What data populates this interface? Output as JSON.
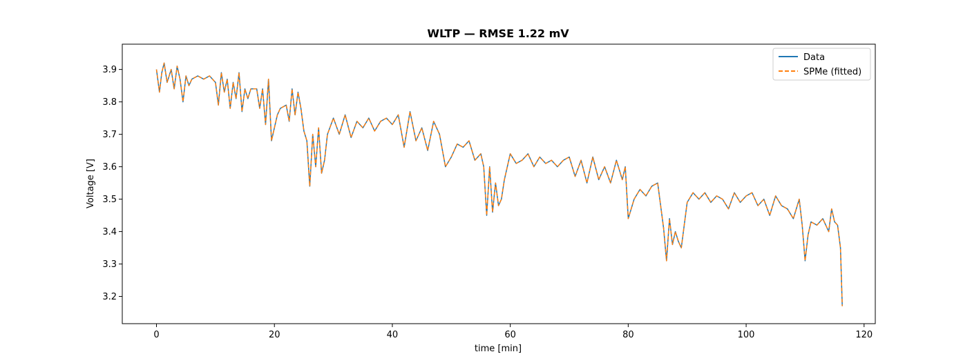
{
  "chart_data": {
    "type": "line",
    "title": "WLTP — RMSE 1.22 mV",
    "xlabel": "time [min]",
    "ylabel": "Voltage [V]",
    "xlim": [
      -5.8,
      121.9
    ],
    "ylim": [
      3.116,
      3.978
    ],
    "xticks": [
      0,
      20,
      40,
      60,
      80,
      100,
      120
    ],
    "xtick_labels": [
      "0",
      "20",
      "40",
      "60",
      "80",
      "100",
      "120"
    ],
    "yticks": [
      3.2,
      3.3,
      3.4,
      3.5,
      3.6,
      3.7,
      3.8,
      3.9
    ],
    "ytick_labels": [
      "3.2",
      "3.3",
      "3.4",
      "3.5",
      "3.6",
      "3.7",
      "3.8",
      "3.9"
    ],
    "grid": false,
    "legend_position": "top-right",
    "series": [
      {
        "name": "Data",
        "color": "#1f77b4",
        "style": "solid",
        "x": [
          0,
          0.5,
          0.9,
          1.3,
          1.8,
          2.5,
          3.0,
          3.5,
          4.0,
          4.5,
          5.0,
          5.5,
          6.0,
          7.0,
          8.0,
          9.0,
          10.0,
          10.5,
          11.0,
          11.5,
          12.0,
          12.5,
          13.0,
          13.5,
          14.0,
          14.5,
          15.0,
          15.5,
          16.0,
          17.0,
          17.5,
          18.0,
          18.5,
          19.0,
          19.5,
          20.0,
          20.5,
          21.0,
          22.0,
          22.5,
          23.0,
          23.5,
          24.0,
          24.5,
          25.0,
          25.5,
          26.0,
          26.5,
          27.0,
          27.5,
          28.0,
          28.5,
          29.0,
          30.0,
          31.0,
          32.0,
          33.0,
          34.0,
          35.0,
          36.0,
          37.0,
          38.0,
          39.0,
          40.0,
          41.0,
          42.0,
          43.0,
          44.0,
          45.0,
          46.0,
          47.0,
          48.0,
          49.0,
          50.0,
          51.0,
          52.0,
          53.0,
          54.0,
          55.0,
          55.5,
          56.0,
          56.5,
          57.0,
          57.5,
          58.0,
          58.5,
          59.0,
          60.0,
          61.0,
          62.0,
          63.0,
          64.0,
          65.0,
          66.0,
          67.0,
          68.0,
          69.0,
          70.0,
          71.0,
          72.0,
          73.0,
          74.0,
          75.0,
          76.0,
          77.0,
          78.0,
          79.0,
          79.5,
          80.0,
          81.0,
          82.0,
          83.0,
          84.0,
          85.0,
          85.5,
          86.0,
          86.5,
          87.0,
          87.5,
          88.0,
          88.5,
          89.0,
          90.0,
          91.0,
          92.0,
          93.0,
          94.0,
          95.0,
          96.0,
          97.0,
          98.0,
          99.0,
          100.0,
          101.0,
          102.0,
          103.0,
          104.0,
          105.0,
          106.0,
          107.0,
          108.0,
          109.0,
          109.5,
          110.0,
          110.5,
          111.0,
          112.0,
          113.0,
          114.0,
          114.5,
          115.0,
          115.5,
          116.0,
          116.3
        ],
        "y": [
          3.9,
          3.83,
          3.89,
          3.92,
          3.86,
          3.9,
          3.84,
          3.91,
          3.87,
          3.8,
          3.88,
          3.85,
          3.87,
          3.88,
          3.87,
          3.88,
          3.86,
          3.79,
          3.89,
          3.83,
          3.87,
          3.78,
          3.86,
          3.81,
          3.89,
          3.77,
          3.84,
          3.81,
          3.84,
          3.84,
          3.78,
          3.84,
          3.73,
          3.87,
          3.68,
          3.72,
          3.76,
          3.78,
          3.79,
          3.74,
          3.84,
          3.76,
          3.83,
          3.78,
          3.71,
          3.68,
          3.54,
          3.7,
          3.6,
          3.72,
          3.58,
          3.62,
          3.7,
          3.75,
          3.7,
          3.76,
          3.69,
          3.74,
          3.72,
          3.75,
          3.71,
          3.74,
          3.75,
          3.73,
          3.76,
          3.66,
          3.77,
          3.68,
          3.72,
          3.65,
          3.74,
          3.7,
          3.6,
          3.63,
          3.67,
          3.66,
          3.68,
          3.62,
          3.64,
          3.6,
          3.45,
          3.6,
          3.46,
          3.55,
          3.48,
          3.5,
          3.56,
          3.64,
          3.61,
          3.62,
          3.64,
          3.6,
          3.63,
          3.61,
          3.62,
          3.6,
          3.62,
          3.63,
          3.57,
          3.62,
          3.55,
          3.63,
          3.56,
          3.6,
          3.55,
          3.62,
          3.56,
          3.6,
          3.44,
          3.5,
          3.53,
          3.51,
          3.54,
          3.55,
          3.48,
          3.41,
          3.31,
          3.44,
          3.36,
          3.4,
          3.37,
          3.35,
          3.49,
          3.52,
          3.5,
          3.52,
          3.49,
          3.51,
          3.5,
          3.47,
          3.52,
          3.49,
          3.51,
          3.52,
          3.48,
          3.5,
          3.45,
          3.51,
          3.48,
          3.47,
          3.44,
          3.5,
          3.42,
          3.31,
          3.39,
          3.43,
          3.42,
          3.44,
          3.4,
          3.47,
          3.43,
          3.42,
          3.35,
          3.17
        ]
      },
      {
        "name": "SPMe (fitted)",
        "color": "#ff7f0e",
        "style": "dashed",
        "x": [
          0,
          0.5,
          0.9,
          1.3,
          1.8,
          2.5,
          3.0,
          3.5,
          4.0,
          4.5,
          5.0,
          5.5,
          6.0,
          7.0,
          8.0,
          9.0,
          10.0,
          10.5,
          11.0,
          11.5,
          12.0,
          12.5,
          13.0,
          13.5,
          14.0,
          14.5,
          15.0,
          15.5,
          16.0,
          17.0,
          17.5,
          18.0,
          18.5,
          19.0,
          19.5,
          20.0,
          20.5,
          21.0,
          22.0,
          22.5,
          23.0,
          23.5,
          24.0,
          24.5,
          25.0,
          25.5,
          26.0,
          26.5,
          27.0,
          27.5,
          28.0,
          28.5,
          29.0,
          30.0,
          31.0,
          32.0,
          33.0,
          34.0,
          35.0,
          36.0,
          37.0,
          38.0,
          39.0,
          40.0,
          41.0,
          42.0,
          43.0,
          44.0,
          45.0,
          46.0,
          47.0,
          48.0,
          49.0,
          50.0,
          51.0,
          52.0,
          53.0,
          54.0,
          55.0,
          55.5,
          56.0,
          56.5,
          57.0,
          57.5,
          58.0,
          58.5,
          59.0,
          60.0,
          61.0,
          62.0,
          63.0,
          64.0,
          65.0,
          66.0,
          67.0,
          68.0,
          69.0,
          70.0,
          71.0,
          72.0,
          73.0,
          74.0,
          75.0,
          76.0,
          77.0,
          78.0,
          79.0,
          79.5,
          80.0,
          81.0,
          82.0,
          83.0,
          84.0,
          85.0,
          85.5,
          86.0,
          86.5,
          87.0,
          87.5,
          88.0,
          88.5,
          89.0,
          90.0,
          91.0,
          92.0,
          93.0,
          94.0,
          95.0,
          96.0,
          97.0,
          98.0,
          99.0,
          100.0,
          101.0,
          102.0,
          103.0,
          104.0,
          105.0,
          106.0,
          107.0,
          108.0,
          109.0,
          109.5,
          110.0,
          110.5,
          111.0,
          112.0,
          113.0,
          114.0,
          114.5,
          115.0,
          115.5,
          116.0,
          116.3
        ],
        "y": [
          3.9,
          3.83,
          3.89,
          3.92,
          3.86,
          3.9,
          3.84,
          3.91,
          3.87,
          3.8,
          3.88,
          3.85,
          3.87,
          3.88,
          3.87,
          3.88,
          3.86,
          3.79,
          3.89,
          3.83,
          3.87,
          3.78,
          3.86,
          3.81,
          3.89,
          3.77,
          3.84,
          3.81,
          3.84,
          3.84,
          3.78,
          3.84,
          3.73,
          3.87,
          3.68,
          3.72,
          3.76,
          3.78,
          3.79,
          3.74,
          3.84,
          3.76,
          3.83,
          3.78,
          3.71,
          3.68,
          3.54,
          3.7,
          3.6,
          3.72,
          3.58,
          3.62,
          3.7,
          3.75,
          3.7,
          3.76,
          3.69,
          3.74,
          3.72,
          3.75,
          3.71,
          3.74,
          3.75,
          3.73,
          3.76,
          3.66,
          3.77,
          3.68,
          3.72,
          3.65,
          3.74,
          3.7,
          3.6,
          3.63,
          3.67,
          3.66,
          3.68,
          3.62,
          3.64,
          3.6,
          3.45,
          3.6,
          3.46,
          3.55,
          3.48,
          3.5,
          3.56,
          3.64,
          3.61,
          3.62,
          3.64,
          3.6,
          3.63,
          3.61,
          3.62,
          3.6,
          3.62,
          3.63,
          3.57,
          3.62,
          3.55,
          3.63,
          3.56,
          3.6,
          3.55,
          3.62,
          3.56,
          3.6,
          3.44,
          3.5,
          3.53,
          3.51,
          3.54,
          3.55,
          3.48,
          3.41,
          3.31,
          3.44,
          3.36,
          3.4,
          3.37,
          3.35,
          3.49,
          3.52,
          3.5,
          3.52,
          3.49,
          3.51,
          3.5,
          3.47,
          3.52,
          3.49,
          3.51,
          3.52,
          3.48,
          3.5,
          3.45,
          3.51,
          3.48,
          3.47,
          3.44,
          3.5,
          3.42,
          3.31,
          3.39,
          3.43,
          3.42,
          3.44,
          3.4,
          3.47,
          3.43,
          3.42,
          3.35,
          3.17
        ]
      }
    ]
  }
}
